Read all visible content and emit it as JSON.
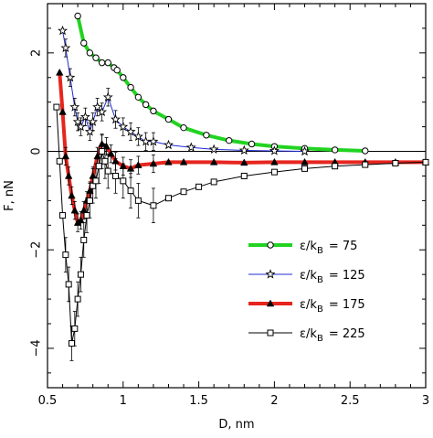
{
  "chart_data": {
    "type": "line",
    "xlabel": "D, nm",
    "ylabel": "F, nN",
    "xlim": [
      0.5,
      3.0
    ],
    "ylim": [
      -4.8,
      3.0
    ],
    "xticks": [
      0.5,
      1,
      1.5,
      2,
      2.5,
      3
    ],
    "xtick_labels": [
      "0.5",
      "1",
      "1.5",
      "2",
      "2.5",
      "3"
    ],
    "yticks": [
      -4,
      -2,
      0,
      2
    ],
    "ytick_labels": [
      "−4",
      "−2",
      "0",
      "2"
    ],
    "zero_line": true,
    "legend_placement": "lower-right",
    "series": [
      {
        "name": "ε/k",
        "name_sub": "B",
        "name_value": "= 75",
        "color": "#22d322",
        "marker": "circle",
        "line_width": 4,
        "x": [
          0.7,
          0.74,
          0.78,
          0.82,
          0.86,
          0.9,
          0.94,
          0.96,
          1.0,
          1.05,
          1.1,
          1.15,
          1.2,
          1.3,
          1.4,
          1.55,
          1.7,
          1.85,
          2.0,
          2.2,
          2.4,
          2.6
        ],
        "y": [
          2.75,
          2.2,
          2.0,
          1.9,
          1.8,
          1.8,
          1.7,
          1.65,
          1.5,
          1.3,
          1.1,
          0.95,
          0.82,
          0.65,
          0.48,
          0.33,
          0.22,
          0.15,
          0.1,
          0.06,
          0.03,
          0.01
        ]
      },
      {
        "name": "ε/k",
        "name_sub": "B",
        "name_value": "= 125",
        "color": "#1f2bd6",
        "marker": "star",
        "line_width": 1,
        "x": [
          0.6,
          0.62,
          0.65,
          0.68,
          0.7,
          0.72,
          0.75,
          0.78,
          0.8,
          0.83,
          0.86,
          0.9,
          0.95,
          1.0,
          1.05,
          1.1,
          1.15,
          1.2,
          1.3,
          1.45,
          1.6,
          1.8,
          2.0,
          2.2
        ],
        "y": [
          2.45,
          2.1,
          1.5,
          0.9,
          0.6,
          0.5,
          0.7,
          0.4,
          0.6,
          0.9,
          0.8,
          1.1,
          0.65,
          0.5,
          0.4,
          0.3,
          0.2,
          0.2,
          0.13,
          0.08,
          0.04,
          0.02,
          0.01,
          0.0
        ]
      },
      {
        "name": "ε/k",
        "name_sub": "B",
        "name_value": "= 175",
        "color": "#e6251e",
        "marker": "triangle",
        "line_width": 4,
        "x": [
          0.58,
          0.6,
          0.62,
          0.64,
          0.66,
          0.68,
          0.7,
          0.72,
          0.74,
          0.76,
          0.78,
          0.8,
          0.83,
          0.86,
          0.89,
          0.92,
          0.95,
          1.0,
          1.05,
          1.1,
          1.2,
          1.3,
          1.4,
          1.6,
          1.8,
          2.0,
          2.2,
          2.4,
          2.6,
          2.8,
          3.0
        ],
        "y": [
          1.6,
          0.8,
          -0.1,
          -0.5,
          -0.9,
          -1.2,
          -1.45,
          -1.4,
          -1.2,
          -1.0,
          -0.8,
          -0.5,
          -0.1,
          0.15,
          0.1,
          -0.05,
          -0.2,
          -0.3,
          -0.35,
          -0.28,
          -0.25,
          -0.22,
          -0.22,
          -0.22,
          -0.23,
          -0.22,
          -0.22,
          -0.22,
          -0.22,
          -0.22,
          -0.22
        ]
      },
      {
        "name": "ε/k",
        "name_sub": "B",
        "name_value": "= 225",
        "color": "#000000",
        "marker": "square",
        "line_width": 1,
        "x": [
          0.56,
          0.58,
          0.6,
          0.62,
          0.64,
          0.66,
          0.68,
          0.7,
          0.72,
          0.74,
          0.76,
          0.78,
          0.8,
          0.82,
          0.84,
          0.86,
          0.88,
          0.9,
          0.95,
          1.0,
          1.05,
          1.1,
          1.2,
          1.3,
          1.4,
          1.5,
          1.6,
          1.8,
          2.0,
          2.2,
          2.4,
          2.6,
          2.8,
          3.0
        ],
        "y": [
          0.9,
          -0.2,
          -1.3,
          -2.1,
          -2.7,
          -3.9,
          -3.6,
          -3.0,
          -2.5,
          -1.8,
          -1.3,
          -1.0,
          -0.7,
          -0.6,
          -0.3,
          0.0,
          -0.2,
          -0.4,
          -0.5,
          -0.6,
          -0.8,
          -1.0,
          -1.1,
          -0.95,
          -0.82,
          -0.72,
          -0.62,
          -0.5,
          -0.42,
          -0.35,
          -0.3,
          -0.27,
          -0.24,
          -0.22
        ]
      }
    ]
  }
}
